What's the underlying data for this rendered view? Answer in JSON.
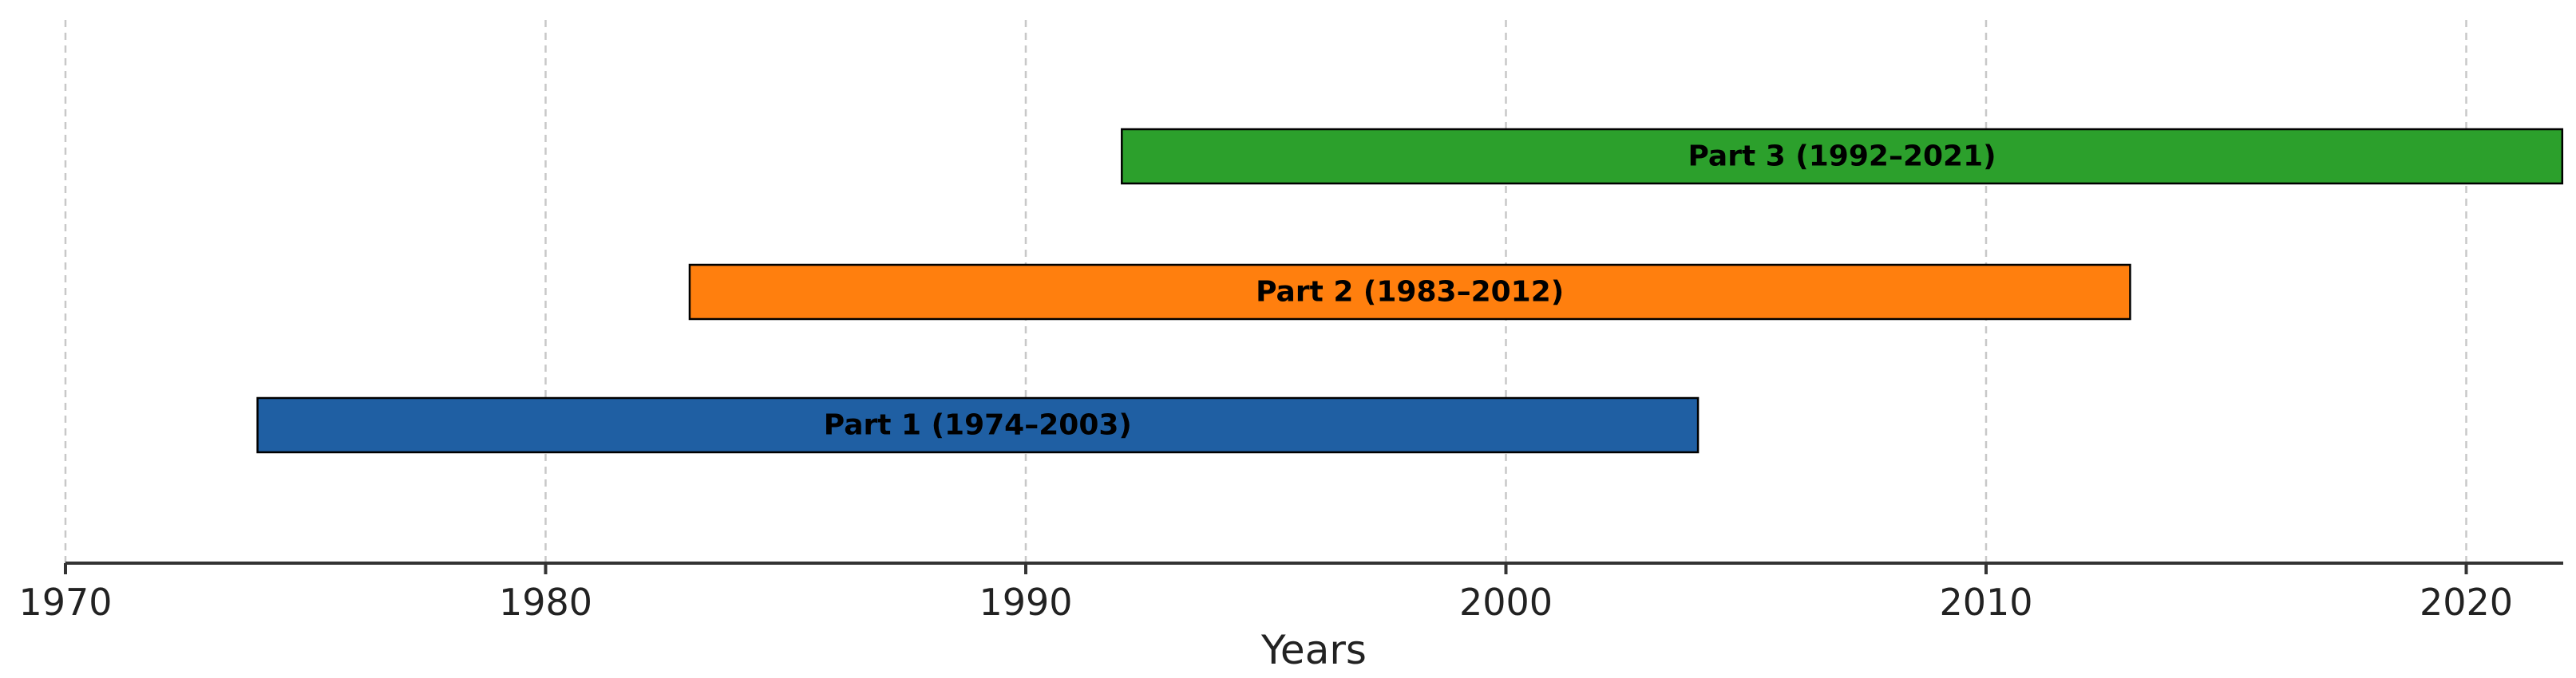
{
  "chart_data": {
    "type": "timeline-bar",
    "xlabel": "Years",
    "xlim": [
      1970,
      2022
    ],
    "xticks": [
      1970,
      1980,
      1990,
      2000,
      2010,
      2020
    ],
    "grid": "vertical-dashed",
    "series": [
      {
        "label": "Part 1 (1974–2003)",
        "start": 1974,
        "end": 2004,
        "color": "#1f5fa3"
      },
      {
        "label": "Part 2 (1983–2012)",
        "start": 1983,
        "end": 2013,
        "color": "#ff7f0e"
      },
      {
        "label": "Part 3 (1992–2021)",
        "start": 1992,
        "end": 2022,
        "color": "#2ca02c"
      }
    ]
  }
}
